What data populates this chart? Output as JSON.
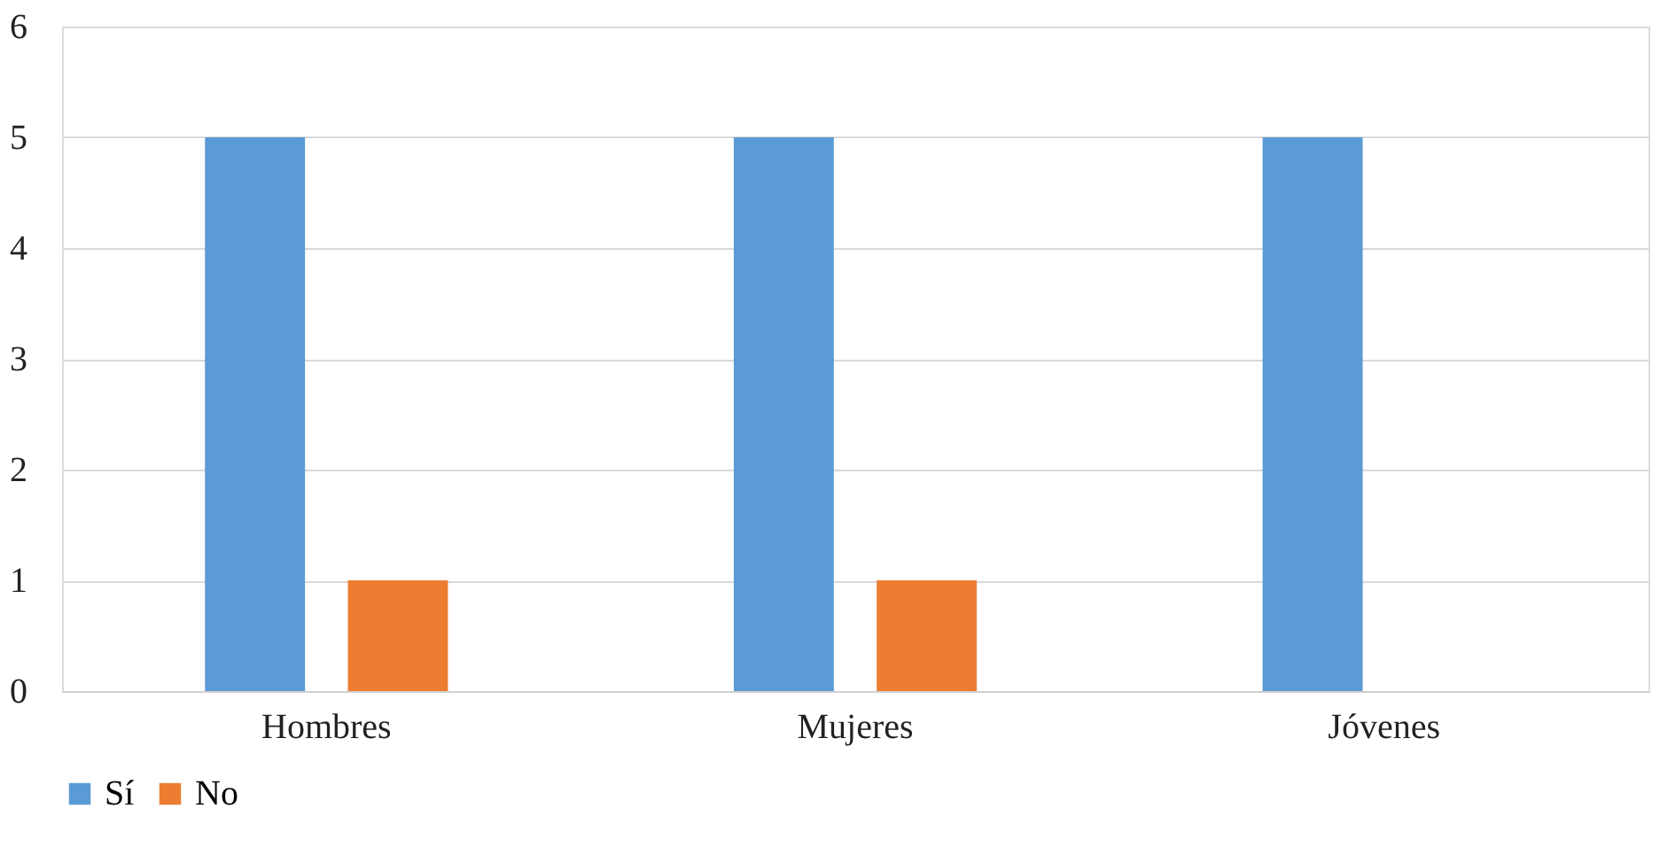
{
  "chart_data": {
    "type": "bar",
    "categories": [
      "Hombres",
      "Mujeres",
      "Jóvenes"
    ],
    "series": [
      {
        "name": "Sí",
        "color": "#5b9bd5",
        "values": [
          5,
          5,
          5
        ]
      },
      {
        "name": "No",
        "color": "#ed7d31",
        "values": [
          1,
          1,
          0
        ]
      }
    ],
    "ylim": [
      0,
      6
    ],
    "yticks": [
      0,
      1,
      2,
      3,
      4,
      5,
      6
    ],
    "grid": "y",
    "legend": "bottom"
  }
}
